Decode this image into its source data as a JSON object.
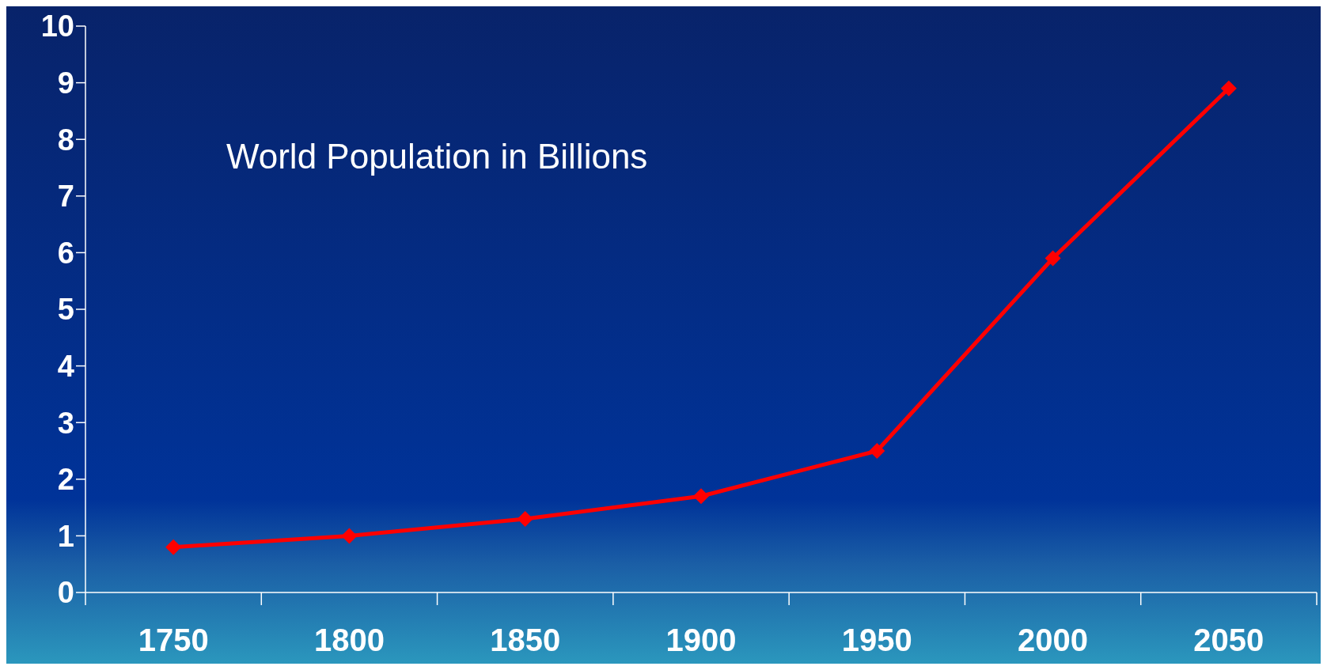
{
  "chart_data": {
    "type": "line",
    "title": "World Population in Billions",
    "categories": [
      "1750",
      "1800",
      "1850",
      "1900",
      "1950",
      "2000",
      "2050"
    ],
    "series": [
      {
        "color": "#ff0000",
        "values": [
          0.8,
          1.0,
          1.3,
          1.7,
          2.5,
          5.9,
          8.9
        ]
      }
    ],
    "ylim": [
      0,
      10
    ],
    "yticks": [
      0,
      1,
      2,
      3,
      4,
      5,
      6,
      7,
      8,
      9,
      10
    ],
    "grid": false,
    "marker": "diamond",
    "line_style": "solid"
  }
}
